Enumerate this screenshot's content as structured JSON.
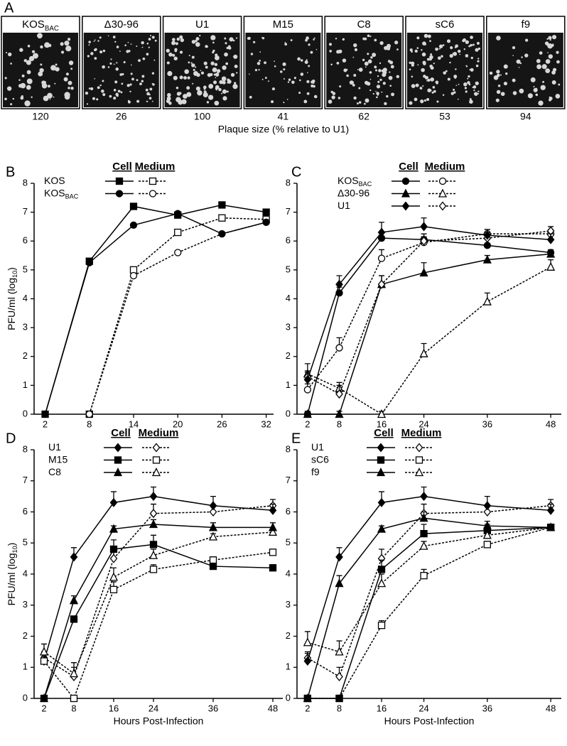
{
  "plaque_panel": {
    "label": "A",
    "caption": "Plaque size (% relative to U1)",
    "strains": [
      {
        "name": "KOS",
        "name_sub": "BAC",
        "size": 120
      },
      {
        "name": "Δ30-96",
        "size": 26
      },
      {
        "name": "U1",
        "size": 100
      },
      {
        "name": "M15",
        "size": 41
      },
      {
        "name": "C8",
        "size": 62
      },
      {
        "name": "sC6",
        "size": 53
      },
      {
        "name": "f9",
        "size": 94
      }
    ]
  },
  "chart_data": [
    {
      "type": "line",
      "panel": "B",
      "ylabel": "PFU/ml (log",
      "ylabel_sub": "10",
      "ylabel_end": ")",
      "legend_headers": [
        "Cell",
        "Medium"
      ],
      "x": [
        2,
        8,
        14,
        20,
        26,
        32
      ],
      "xlim": [
        0.5,
        33
      ],
      "xticks": [
        2,
        8,
        14,
        20,
        26,
        32
      ],
      "ylim": [
        0,
        8
      ],
      "yticks": [
        0,
        1,
        2,
        3,
        4,
        5,
        6,
        7,
        8
      ],
      "series": [
        {
          "name": "KOS",
          "marker": "square",
          "color": "#000000",
          "cell_values": [
            0,
            5.3,
            7.2,
            6.9,
            7.25,
            7.0
          ],
          "medium_values": [
            null,
            0,
            5.0,
            6.3,
            6.8,
            6.75
          ]
        },
        {
          "name": "KOS",
          "name_sub": "BAC",
          "marker": "circle",
          "color": "#000000",
          "cell_values": [
            0,
            5.25,
            6.55,
            6.95,
            6.25,
            6.65
          ],
          "medium_values": [
            null,
            0,
            4.8,
            5.6,
            6.25,
            6.65
          ]
        }
      ]
    },
    {
      "type": "line",
      "panel": "C",
      "legend_headers": [
        "Cell",
        "Medium"
      ],
      "x": [
        2,
        8,
        16,
        24,
        36,
        48
      ],
      "xlim": [
        0,
        50
      ],
      "xticks": [
        2,
        8,
        16,
        24,
        36,
        48
      ],
      "ylim": [
        0,
        8
      ],
      "yticks": [
        0,
        1,
        2,
        3,
        4,
        5,
        6,
        7,
        8
      ],
      "series": [
        {
          "name": "KOS",
          "name_sub": "BAC",
          "marker": "circle",
          "color": "#000000",
          "cell_values": [
            0,
            4.2,
            6.1,
            6.05,
            5.85,
            5.6
          ],
          "cell_errors": [
            0.1,
            0.2,
            0.2,
            0.2,
            0.2,
            0.1
          ],
          "medium_values": [
            0.85,
            2.3,
            5.4,
            5.95,
            6.25,
            6.25
          ],
          "medium_errors": [
            0.2,
            0.35,
            0.3,
            0.2,
            0.15,
            0.15
          ]
        },
        {
          "name": "Δ30-96",
          "marker": "triangle",
          "color": "#000000",
          "cell_values": [
            0,
            0,
            4.5,
            4.9,
            5.35,
            5.55
          ],
          "cell_errors": [
            0.1,
            0.1,
            0.3,
            0.35,
            0.15,
            0.1
          ],
          "medium_values": [
            1.4,
            0.9,
            0,
            2.1,
            3.9,
            5.1
          ],
          "medium_errors": [
            0.35,
            0.2,
            0.1,
            0.35,
            0.3,
            0.25
          ]
        },
        {
          "name": "U1",
          "marker": "diamond",
          "color": "#000000",
          "cell_values": [
            1.2,
            4.5,
            6.3,
            6.5,
            6.2,
            6.05
          ],
          "cell_errors": [
            0.25,
            0.3,
            0.35,
            0.3,
            0.2,
            0.2
          ],
          "medium_values": [
            1.3,
            0.7,
            4.5,
            6.0,
            6.1,
            6.35
          ],
          "medium_errors": [
            0.2,
            0.3,
            0.3,
            0.25,
            0.2,
            0.15
          ]
        }
      ]
    },
    {
      "type": "line",
      "panel": "D",
      "ylabel": "PFU/ml (log",
      "ylabel_sub": "10",
      "ylabel_end": ")",
      "xlabel": "Hours Post-Infection",
      "legend_headers": [
        "Cell",
        "Medium"
      ],
      "x": [
        2,
        8,
        16,
        24,
        36,
        48
      ],
      "xlim": [
        0,
        50
      ],
      "xticks": [
        2,
        8,
        16,
        24,
        36,
        48
      ],
      "ylim": [
        0,
        8
      ],
      "yticks": [
        0,
        1,
        2,
        3,
        4,
        5,
        6,
        7,
        8
      ],
      "series": [
        {
          "name": "U1",
          "marker": "diamond",
          "color": "#000000",
          "cell_values": [
            1.2,
            4.55,
            6.3,
            6.5,
            6.2,
            6.05
          ],
          "cell_errors": [
            0.25,
            0.3,
            0.35,
            0.3,
            0.3,
            0.2
          ],
          "medium_values": [
            1.3,
            0.7,
            4.5,
            5.95,
            6.0,
            6.2
          ],
          "medium_errors": [
            0.2,
            0.3,
            0.3,
            0.3,
            0.2,
            0.2
          ]
        },
        {
          "name": "M15",
          "marker": "square",
          "color": "#000000",
          "cell_values": [
            0,
            2.55,
            4.8,
            4.95,
            4.25,
            4.2
          ],
          "cell_errors": [
            0.1,
            0.1,
            0.3,
            0.3,
            0.1,
            0.1
          ],
          "medium_values": [
            1.2,
            0,
            3.5,
            4.15,
            4.45,
            4.7
          ],
          "medium_errors": [
            0.15,
            0.1,
            0.25,
            0.15,
            0.1,
            0.1
          ]
        },
        {
          "name": "C8",
          "marker": "triangle",
          "color": "#000000",
          "cell_values": [
            0,
            3.15,
            5.45,
            5.6,
            5.5,
            5.5
          ],
          "cell_errors": [
            0.1,
            0.15,
            0.1,
            0.15,
            0.15,
            0.15
          ],
          "medium_values": [
            1.5,
            0.8,
            3.9,
            4.6,
            5.2,
            5.35
          ],
          "medium_errors": [
            0.25,
            0.35,
            0.3,
            0.2,
            0.1,
            0.1
          ]
        }
      ]
    },
    {
      "type": "line",
      "panel": "E",
      "xlabel": "Hours Post-Infection",
      "legend_headers": [
        "Cell",
        "Medium"
      ],
      "x": [
        2,
        8,
        16,
        24,
        36,
        48
      ],
      "xlim": [
        0,
        50
      ],
      "xticks": [
        2,
        8,
        16,
        24,
        36,
        48
      ],
      "ylim": [
        0,
        8
      ],
      "yticks": [
        0,
        1,
        2,
        3,
        4,
        5,
        6,
        7,
        8
      ],
      "series": [
        {
          "name": "U1",
          "marker": "diamond",
          "color": "#000000",
          "cell_values": [
            1.2,
            4.55,
            6.3,
            6.5,
            6.2,
            6.05
          ],
          "cell_errors": [
            0.25,
            0.3,
            0.35,
            0.3,
            0.3,
            0.2
          ],
          "medium_values": [
            1.3,
            0.7,
            4.5,
            5.95,
            6.0,
            6.2
          ],
          "medium_errors": [
            0.2,
            0.3,
            0.3,
            0.3,
            0.2,
            0.2
          ]
        },
        {
          "name": "sC6",
          "marker": "square",
          "color": "#000000",
          "cell_values": [
            0,
            0,
            4.15,
            5.3,
            5.4,
            5.5
          ],
          "cell_errors": [
            0.1,
            0.1,
            0.3,
            0.3,
            0.2,
            0.1
          ],
          "medium_values": [
            0,
            0,
            2.35,
            3.95,
            4.95,
            5.5
          ],
          "medium_errors": [
            0.1,
            0.1,
            0.15,
            0.2,
            0.1,
            0.1
          ]
        },
        {
          "name": "f9",
          "marker": "triangle",
          "color": "#000000",
          "cell_values": [
            0,
            3.7,
            5.45,
            5.8,
            5.55,
            5.5
          ],
          "cell_errors": [
            0.1,
            0.25,
            0.1,
            0.2,
            0.15,
            0.1
          ],
          "medium_values": [
            1.8,
            1.5,
            3.7,
            4.9,
            5.25,
            5.5
          ],
          "medium_errors": [
            0.35,
            0.35,
            0.3,
            0.15,
            0.1,
            0.1
          ]
        }
      ]
    }
  ]
}
